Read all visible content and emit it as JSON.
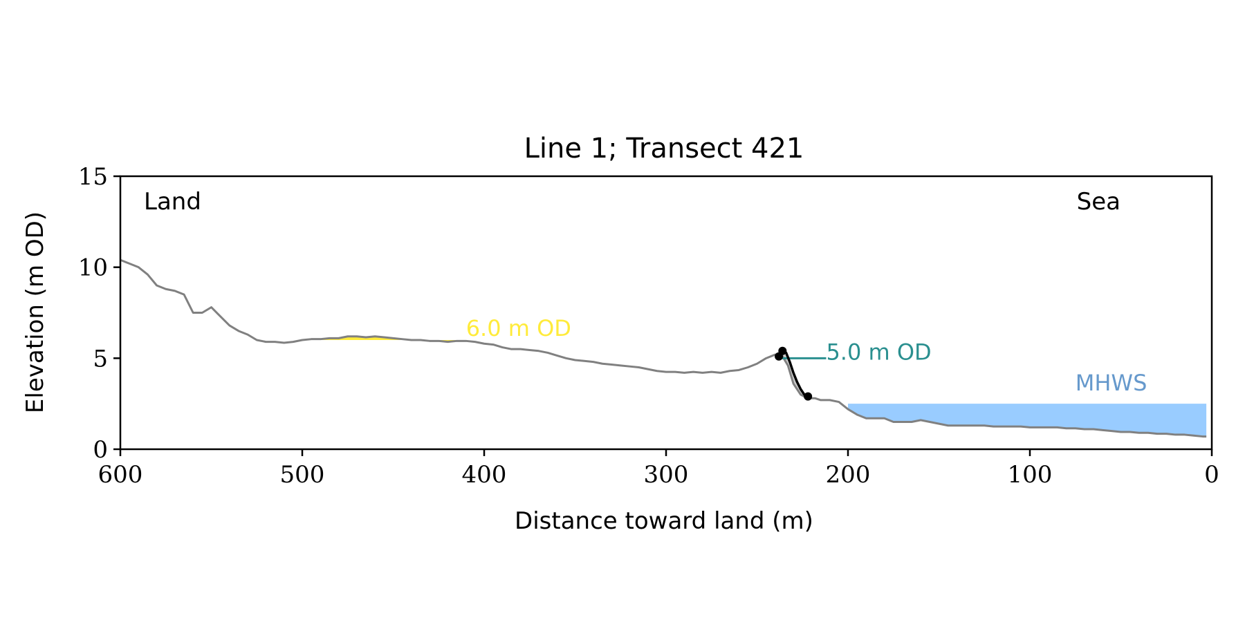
{
  "chart_data": {
    "type": "line",
    "title": "Line 1; Transect 421",
    "xlabel": "Distance toward land (m)",
    "ylabel": "Elevation (m OD)",
    "xlim": [
      600,
      0
    ],
    "ylim": [
      0,
      15
    ],
    "x_ticks": [
      600,
      500,
      400,
      300,
      200,
      100,
      0
    ],
    "y_ticks": [
      0,
      5,
      10,
      15
    ],
    "grid": false,
    "corner_labels": {
      "left": "Land",
      "right": "Sea"
    },
    "series": [
      {
        "role": "profile",
        "color": "#808080",
        "x": [
          600,
          595,
          590,
          585,
          580,
          575,
          570,
          565,
          560,
          555,
          550,
          546,
          542,
          540,
          535,
          530,
          525,
          520,
          515,
          510,
          505,
          500,
          495,
          490,
          485,
          480,
          475,
          470,
          465,
          460,
          455,
          450,
          445,
          440,
          435,
          430,
          425,
          420,
          415,
          410,
          405,
          400,
          395,
          390,
          385,
          380,
          375,
          370,
          365,
          360,
          355,
          350,
          345,
          340,
          335,
          330,
          325,
          320,
          315,
          310,
          305,
          300,
          295,
          290,
          285,
          280,
          275,
          270,
          265,
          260,
          255,
          250,
          245,
          240,
          236,
          233,
          230,
          226,
          222,
          218,
          215,
          210,
          205,
          200,
          195,
          190,
          185,
          180,
          175,
          170,
          165,
          160,
          155,
          150,
          145,
          140,
          135,
          130,
          125,
          120,
          115,
          110,
          105,
          100,
          95,
          90,
          85,
          80,
          75,
          70,
          65,
          60,
          55,
          50,
          45,
          40,
          35,
          30,
          25,
          20,
          15,
          10,
          5,
          3
        ],
        "y": [
          10.4,
          10.2,
          10.0,
          9.6,
          9.0,
          8.8,
          8.7,
          8.5,
          7.5,
          7.5,
          7.8,
          7.4,
          7.0,
          6.8,
          6.5,
          6.3,
          6.0,
          5.9,
          5.9,
          5.85,
          5.9,
          6.0,
          6.05,
          6.05,
          6.1,
          6.1,
          6.2,
          6.2,
          6.15,
          6.2,
          6.15,
          6.1,
          6.05,
          6.0,
          6.0,
          5.95,
          5.95,
          5.9,
          5.95,
          5.95,
          5.9,
          5.8,
          5.75,
          5.6,
          5.5,
          5.5,
          5.45,
          5.4,
          5.3,
          5.15,
          5.0,
          4.9,
          4.85,
          4.8,
          4.7,
          4.65,
          4.6,
          4.55,
          4.5,
          4.4,
          4.3,
          4.25,
          4.25,
          4.2,
          4.25,
          4.2,
          4.25,
          4.2,
          4.3,
          4.35,
          4.5,
          4.7,
          5.0,
          5.2,
          5.1,
          4.6,
          3.6,
          3.0,
          2.8,
          2.8,
          2.7,
          2.7,
          2.6,
          2.2,
          1.9,
          1.7,
          1.7,
          1.7,
          1.5,
          1.5,
          1.5,
          1.6,
          1.5,
          1.4,
          1.3,
          1.3,
          1.3,
          1.3,
          1.3,
          1.25,
          1.25,
          1.25,
          1.25,
          1.2,
          1.2,
          1.2,
          1.2,
          1.15,
          1.15,
          1.1,
          1.1,
          1.05,
          1.0,
          0.95,
          0.95,
          0.9,
          0.9,
          0.85,
          0.85,
          0.8,
          0.8,
          0.75,
          0.7,
          0.7
        ]
      },
      {
        "role": "cliff",
        "color": "#000000",
        "x": [
          238,
          236,
          234,
          232,
          230,
          228,
          226,
          224,
          222
        ],
        "y": [
          5.1,
          5.4,
          5.3,
          4.8,
          4.2,
          3.7,
          3.3,
          3.0,
          2.9
        ],
        "markers": [
          {
            "x": 238,
            "y": 5.1
          },
          {
            "x": 236,
            "y": 5.4
          },
          {
            "x": 222,
            "y": 2.9
          }
        ]
      }
    ],
    "shaded_regions": [
      {
        "name": "6.0 m OD",
        "color": "#ffeb3b",
        "level": 6.0,
        "x_range": [
          500,
          415
        ]
      },
      {
        "name": "MHWS",
        "color": "#99ccff",
        "level": 2.5,
        "x_range": [
          200,
          3
        ]
      },
      {
        "name": "cliff-wedge",
        "color": "#cccccc",
        "x_range": [
          238,
          222
        ]
      }
    ],
    "reference_lines": [
      {
        "name": "5.0 m OD",
        "color": "#2a8f8f",
        "level": 5.0,
        "x_range": [
          237,
          212
        ]
      }
    ],
    "annotations": [
      {
        "text": "6.0 m OD",
        "color": "#ffeb3b",
        "x": 410,
        "y": 6.0
      },
      {
        "text": "5.0 m OD",
        "color": "#2a8f8f",
        "x": 212,
        "y": 5.0
      },
      {
        "text": "MHWS",
        "color": "#6699cc",
        "x": 75,
        "y": 3.0
      }
    ]
  }
}
